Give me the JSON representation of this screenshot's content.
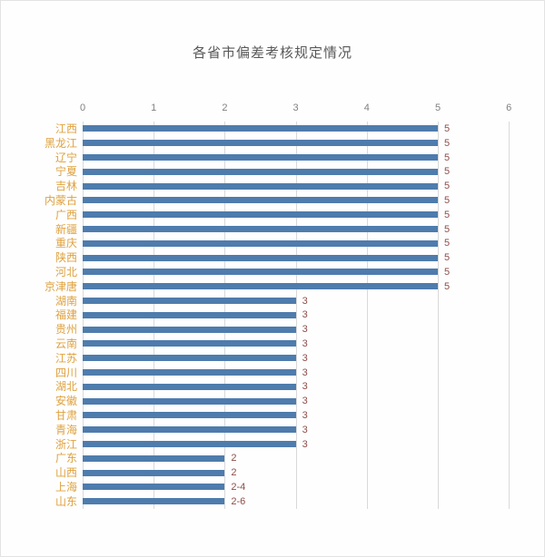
{
  "title": "各省市偏差考核规定情况",
  "colors": {
    "bar": "#4e7cad",
    "category_label": "#dfa13e",
    "value_label": "#8e4d48",
    "tick_label": "#808080",
    "gridline": "#d9d9d9",
    "title": "#595959",
    "background": "#fefefe",
    "frame_border": "#e3e3e3"
  },
  "chart_data": {
    "type": "bar",
    "orientation": "horizontal",
    "title": "各省市偏差考核规定情况",
    "categories": [
      "江西",
      "黑龙江",
      "辽宁",
      "宁夏",
      "吉林",
      "内蒙古",
      "广西",
      "新疆",
      "重庆",
      "陕西",
      "河北",
      "京津唐",
      "湖南",
      "福建",
      "贵州",
      "云南",
      "江苏",
      "四川",
      "湖北",
      "安徽",
      "甘肃",
      "青海",
      "浙江",
      "广东",
      "山西",
      "上海",
      "山东"
    ],
    "values": [
      5,
      5,
      5,
      5,
      5,
      5,
      5,
      5,
      5,
      5,
      5,
      5,
      3,
      3,
      3,
      3,
      3,
      3,
      3,
      3,
      3,
      3,
      3,
      2,
      2,
      2,
      2
    ],
    "data_labels": [
      "5",
      "5",
      "5",
      "5",
      "5",
      "5",
      "5",
      "5",
      "5",
      "5",
      "5",
      "5",
      "3",
      "3",
      "3",
      "3",
      "3",
      "3",
      "3",
      "3",
      "3",
      "3",
      "3",
      "2",
      "2",
      "2-4",
      "2-6"
    ],
    "x_ticks": [
      0,
      1,
      2,
      3,
      4,
      5,
      6
    ],
    "xlim": [
      0,
      6
    ],
    "xlabel": "",
    "ylabel": "",
    "grid": true,
    "legend": false,
    "data_labels_shown": true
  }
}
